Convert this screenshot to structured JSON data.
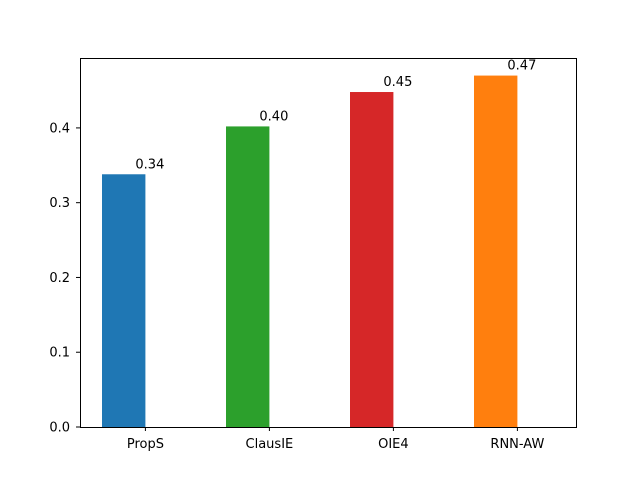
{
  "chart_data": {
    "type": "bar",
    "categories": [
      "PropS",
      "ClausIE",
      "OIE4",
      "RNN-AW"
    ],
    "values": [
      0.338,
      0.402,
      0.448,
      0.47
    ],
    "value_labels": [
      "0.34",
      "0.40",
      "0.45",
      "0.47"
    ],
    "colors": [
      "#1f77b4",
      "#2ca02c",
      "#d62728",
      "#ff7f0e"
    ],
    "yticks": [
      "0.0",
      "0.1",
      "0.2",
      "0.3",
      "0.4"
    ],
    "ytick_values": [
      0.0,
      0.1,
      0.2,
      0.3,
      0.4
    ],
    "ylim": [
      0,
      0.4935
    ],
    "title": "",
    "xlabel": "",
    "ylabel": "",
    "grid": false,
    "legend": "none"
  }
}
